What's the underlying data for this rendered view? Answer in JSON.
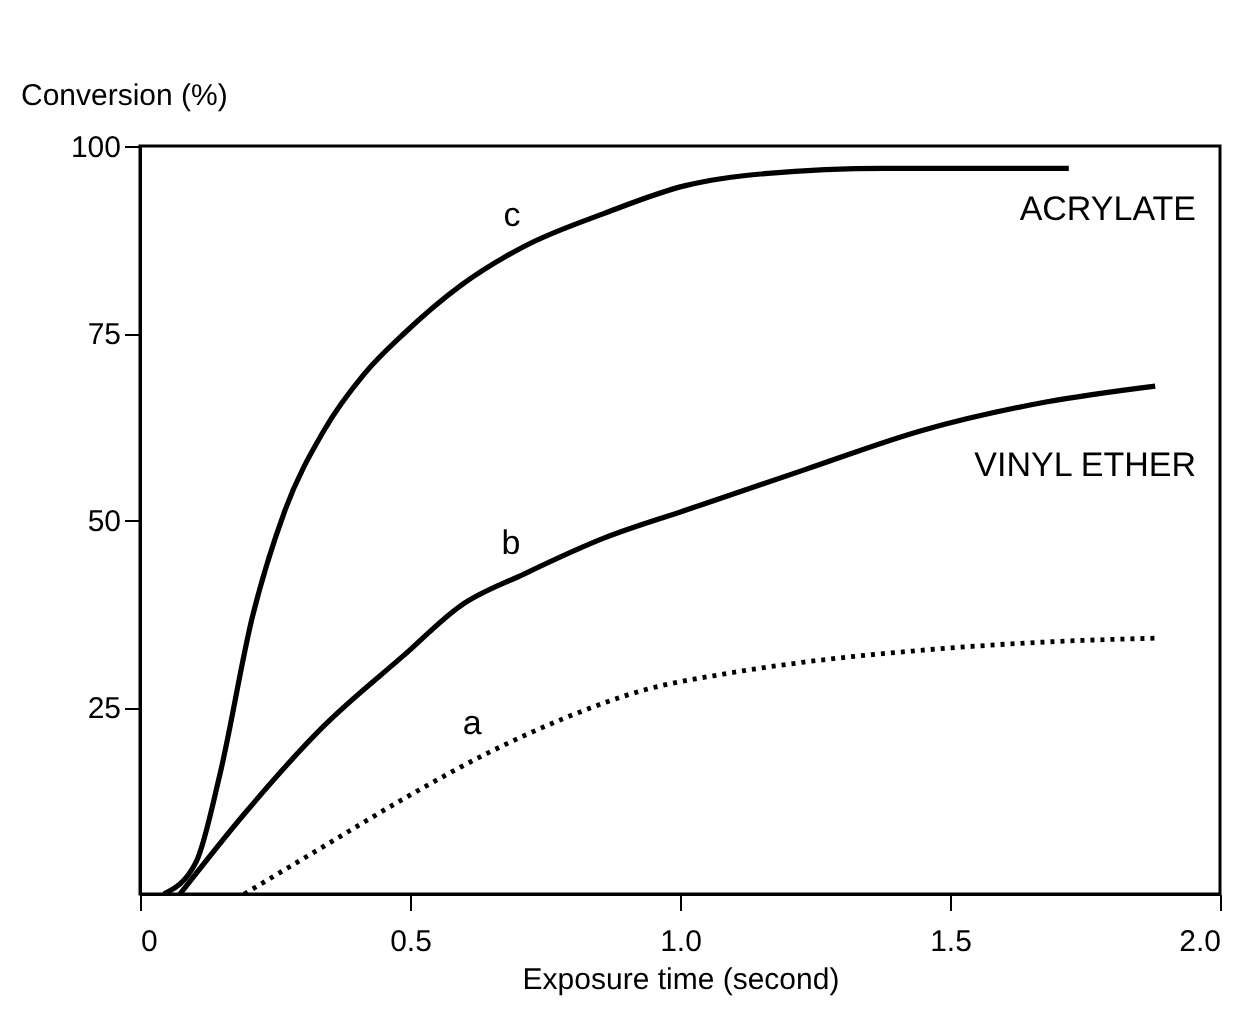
{
  "chart_data": {
    "type": "line",
    "xlabel": "Exposure time (second)",
    "ylabel": "Conversion (%)",
    "xlim": [
      0,
      2.0
    ],
    "ylim": [
      0,
      100
    ],
    "xticks": [
      0,
      {
        "value": 0.5,
        "label": "0.5"
      },
      {
        "value": 1.0,
        "label": "1.0"
      },
      {
        "value": 1.5,
        "label": "1.5"
      },
      {
        "value": 2.0,
        "label": "2.0"
      }
    ],
    "yticks": [
      25,
      50,
      75,
      100
    ],
    "grid": false,
    "marker": "none",
    "series": [
      {
        "name": "c",
        "color": "#000000",
        "line_style": "solid",
        "x": [
          0.044,
          0.104,
          0.148,
          0.208,
          0.267,
          0.341,
          0.415,
          0.49,
          0.593,
          0.712,
          0.86,
          1.01,
          1.157,
          1.38,
          1.72
        ],
        "values": [
          0,
          4.3,
          16,
          37,
          51,
          62,
          69.5,
          75,
          81.3,
          86.6,
          91,
          94.7,
          96.3,
          97,
          97
        ]
      },
      {
        "name": "b",
        "color": "#000000",
        "line_style": "solid",
        "x": [
          0.074,
          0.193,
          0.341,
          0.49,
          0.593,
          0.712,
          0.86,
          1.01,
          1.23,
          1.45,
          1.68,
          1.88
        ],
        "values": [
          0,
          10.7,
          22.5,
          32,
          38.5,
          42.8,
          47.6,
          51.3,
          56.7,
          62,
          65.8,
          67.9
        ]
      },
      {
        "name": "a",
        "color": "#000000",
        "line_style": "dotted",
        "x": [
          0.193,
          0.341,
          0.49,
          0.64,
          0.786,
          0.935,
          1.08,
          1.23,
          1.45,
          1.68,
          1.88
        ],
        "values": [
          0,
          6.4,
          12.8,
          18.7,
          23.5,
          27.3,
          29.4,
          31,
          32.6,
          33.7,
          34.2
        ]
      }
    ],
    "annotations": [
      "ACRYLATE",
      "VINYL ETHER"
    ]
  }
}
